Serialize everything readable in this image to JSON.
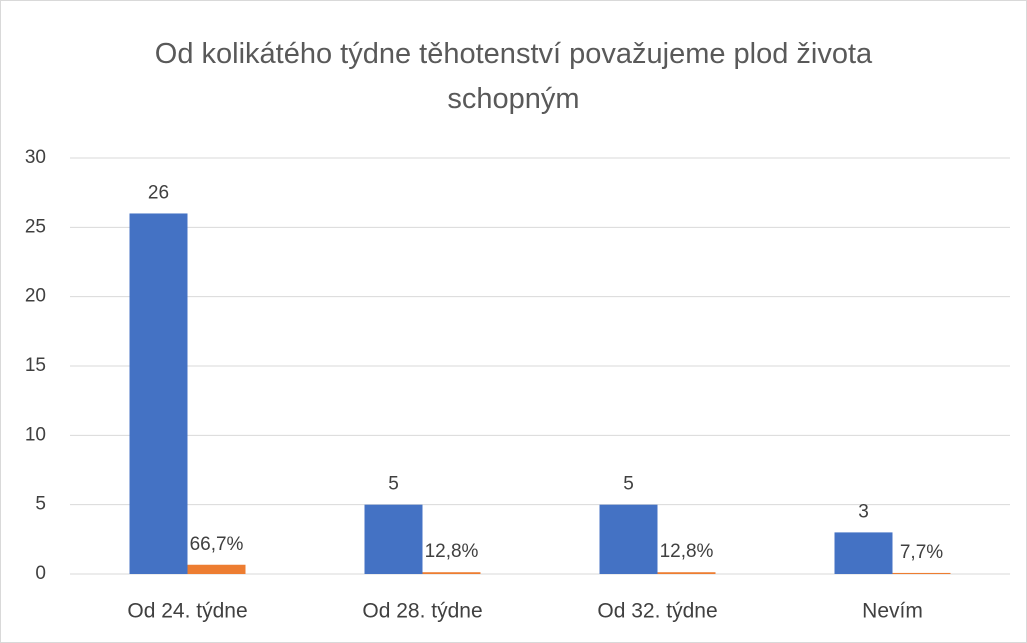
{
  "chart_data": {
    "type": "bar",
    "title": "Od kolikátého týdne těhotenství považujeme plod života schopným",
    "categories": [
      "Od 24. týdne",
      "Od 28. týdne",
      "Od 32. týdne",
      "Nevím"
    ],
    "series": [
      {
        "color": "#4472c4",
        "values": [
          26,
          5,
          5,
          3
        ]
      },
      {
        "color": "#ed7d31",
        "values": [
          0.667,
          0.128,
          0.128,
          0.077
        ],
        "value_labels": [
          "66,7%",
          "12,8%",
          "12,8%",
          "7,7%"
        ]
      }
    ],
    "ylim": [
      0,
      30
    ],
    "yticks": [
      0,
      5,
      10,
      15,
      20,
      25,
      30
    ],
    "grid": true
  }
}
